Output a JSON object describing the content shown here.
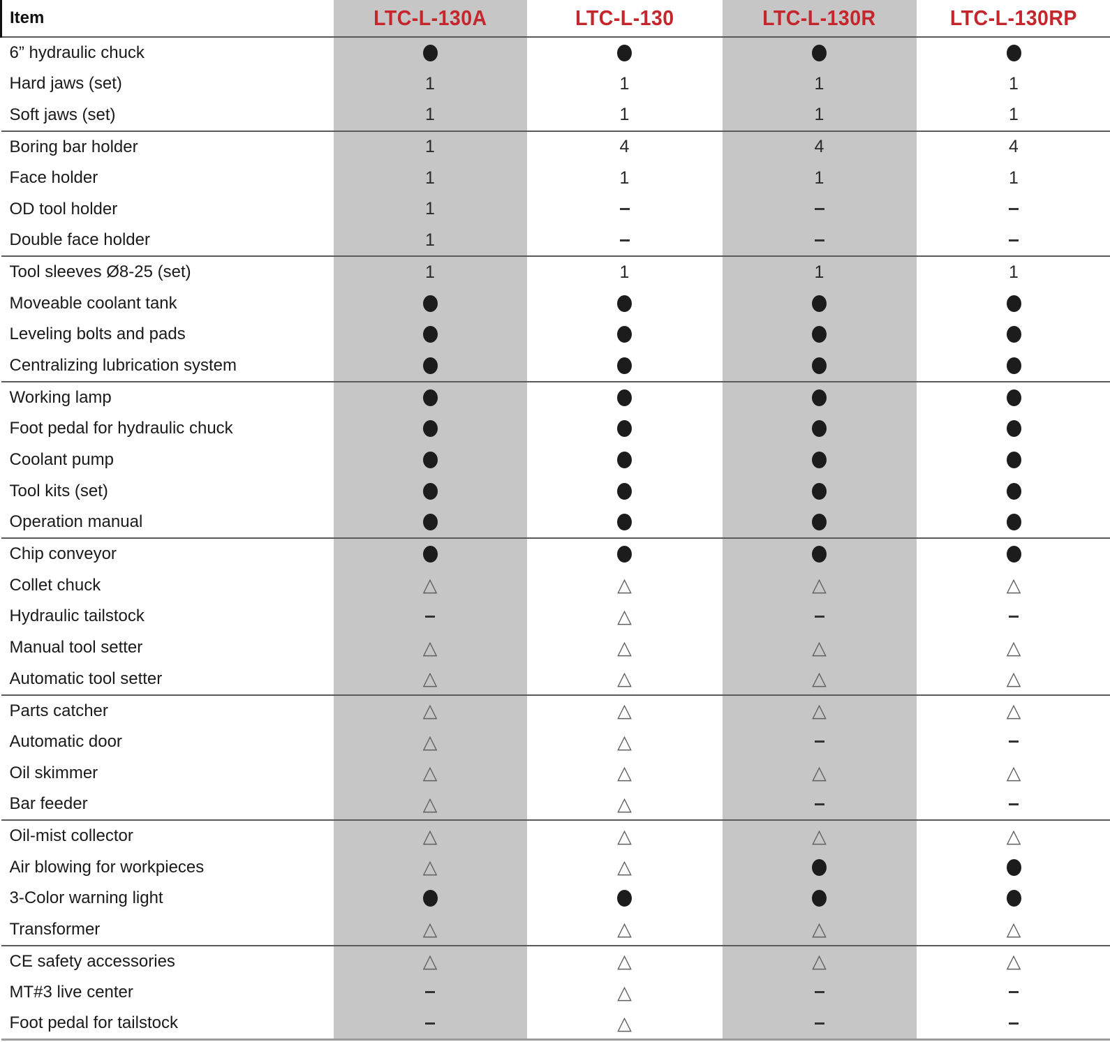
{
  "table": {
    "item_header": "Item",
    "models": [
      "LTC-L-130A",
      "LTC-L-130",
      "LTC-L-130R",
      "LTC-L-130RP"
    ],
    "colors": {
      "model_text_red": "#c5262c",
      "gray_column": "#c6c6c6"
    },
    "symbols": {
      "dot": "filled-circle-standard",
      "triangle": "outline-triangle-optional",
      "dash": "not-available",
      "triangle_glyph": "△"
    },
    "sections": [
      {
        "rows": [
          {
            "item": "6” hydraulic chuck",
            "values": [
              "dot",
              "dot",
              "dot",
              "dot"
            ]
          },
          {
            "item": "Hard jaws (set)",
            "values": [
              "1",
              "1",
              "1",
              "1"
            ]
          },
          {
            "item": "Soft jaws (set)",
            "values": [
              "1",
              "1",
              "1",
              "1"
            ]
          }
        ]
      },
      {
        "rows": [
          {
            "item": "Boring bar holder",
            "values": [
              "1",
              "4",
              "4",
              "4"
            ]
          },
          {
            "item": "Face holder",
            "values": [
              "1",
              "1",
              "1",
              "1"
            ]
          },
          {
            "item": "OD tool holder",
            "values": [
              "1",
              "dash",
              "dash",
              "dash"
            ]
          },
          {
            "item": "Double face holder",
            "values": [
              "1",
              "dash",
              "dash",
              "dash"
            ]
          }
        ]
      },
      {
        "rows": [
          {
            "item": "Tool sleeves Ø8-25 (set)",
            "values": [
              "1",
              "1",
              "1",
              "1"
            ]
          },
          {
            "item": "Moveable coolant tank",
            "values": [
              "dot",
              "dot",
              "dot",
              "dot"
            ]
          },
          {
            "item": "Leveling bolts and pads",
            "values": [
              "dot",
              "dot",
              "dot",
              "dot"
            ]
          },
          {
            "item": "Centralizing lubrication system",
            "values": [
              "dot",
              "dot",
              "dot",
              "dot"
            ]
          }
        ]
      },
      {
        "rows": [
          {
            "item": "Working lamp",
            "values": [
              "dot",
              "dot",
              "dot",
              "dot"
            ]
          },
          {
            "item": "Foot pedal for hydraulic chuck",
            "values": [
              "dot",
              "dot",
              "dot",
              "dot"
            ]
          },
          {
            "item": "Coolant pump",
            "values": [
              "dot",
              "dot",
              "dot",
              "dot"
            ]
          },
          {
            "item": "Tool kits (set)",
            "values": [
              "dot",
              "dot",
              "dot",
              "dot"
            ]
          },
          {
            "item": "Operation manual",
            "values": [
              "dot",
              "dot",
              "dot",
              "dot"
            ]
          }
        ]
      },
      {
        "rows": [
          {
            "item": "Chip conveyor",
            "values": [
              "dot",
              "dot",
              "dot",
              "dot"
            ]
          },
          {
            "item": "Collet chuck",
            "values": [
              "triangle",
              "triangle",
              "triangle",
              "triangle"
            ]
          },
          {
            "item": "Hydraulic tailstock",
            "values": [
              "dash",
              "triangle",
              "dash",
              "dash"
            ]
          },
          {
            "item": "Manual tool setter",
            "values": [
              "triangle",
              "triangle",
              "triangle",
              "triangle"
            ]
          },
          {
            "item": "Automatic tool setter",
            "values": [
              "triangle",
              "triangle",
              "triangle",
              "triangle"
            ]
          }
        ]
      },
      {
        "rows": [
          {
            "item": "Parts catcher",
            "values": [
              "triangle",
              "triangle",
              "triangle",
              "triangle"
            ]
          },
          {
            "item": "Automatic door",
            "values": [
              "triangle",
              "triangle",
              "dash",
              "dash"
            ]
          },
          {
            "item": "Oil skimmer",
            "values": [
              "triangle",
              "triangle",
              "triangle",
              "triangle"
            ]
          },
          {
            "item": "Bar feeder",
            "values": [
              "triangle",
              "triangle",
              "dash",
              "dash"
            ]
          }
        ]
      },
      {
        "rows": [
          {
            "item": "Oil-mist collector",
            "values": [
              "triangle",
              "triangle",
              "triangle",
              "triangle"
            ]
          },
          {
            "item": "Air blowing for workpieces",
            "values": [
              "triangle",
              "triangle",
              "dot",
              "dot"
            ]
          },
          {
            "item": "3-Color warning light",
            "values": [
              "dot",
              "dot",
              "dot",
              "dot"
            ]
          },
          {
            "item": "Transformer",
            "values": [
              "triangle",
              "triangle",
              "triangle",
              "triangle"
            ]
          }
        ]
      },
      {
        "rows": [
          {
            "item": "CE safety accessories",
            "values": [
              "triangle",
              "triangle",
              "triangle",
              "triangle"
            ]
          },
          {
            "item": "MT#3 live center",
            "values": [
              "dash",
              "triangle",
              "dash",
              "dash"
            ]
          },
          {
            "item": "Foot pedal for tailstock",
            "values": [
              "dash",
              "triangle",
              "dash",
              "dash"
            ]
          }
        ]
      }
    ]
  }
}
